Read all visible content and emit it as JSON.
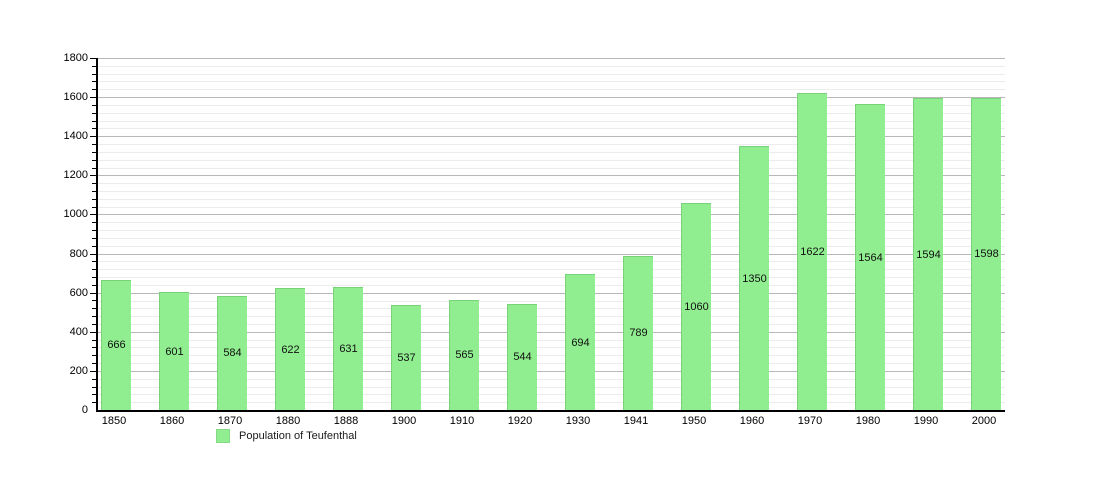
{
  "chart_data": {
    "type": "bar",
    "title": "",
    "categories": [
      "1850",
      "1860",
      "1870",
      "1880",
      "1888",
      "1900",
      "1910",
      "1920",
      "1930",
      "1941",
      "1950",
      "1960",
      "1970",
      "1980",
      "1990",
      "2000"
    ],
    "values": [
      666,
      601,
      584,
      622,
      631,
      537,
      565,
      544,
      694,
      789,
      1060,
      1350,
      1622,
      1564,
      1594,
      1598
    ],
    "value_labels": [
      "666",
      "601",
      "584",
      "622",
      "631",
      "537",
      "565",
      "544",
      "694",
      "789",
      "1060",
      "1350",
      "1622",
      "1564",
      "1594",
      "1598"
    ],
    "legend": "Population of Teufenthal",
    "legend_position": "bottom-left",
    "xlabel": "",
    "ylabel": "",
    "ylim": [
      0,
      1800
    ],
    "y_major_step": 200,
    "y_minor_step": 40,
    "y_tick_labels": [
      "0",
      "200",
      "400",
      "600",
      "800",
      "1000",
      "1200",
      "1400",
      "1600",
      "1800"
    ],
    "grid": true,
    "bar_color": "#90ee90",
    "bar_edge_color": "#79d279",
    "major_grid_color": "#b8b8b8",
    "minor_grid_color": "#ececec",
    "axis_color": "#000000",
    "text_color": "#000000"
  }
}
